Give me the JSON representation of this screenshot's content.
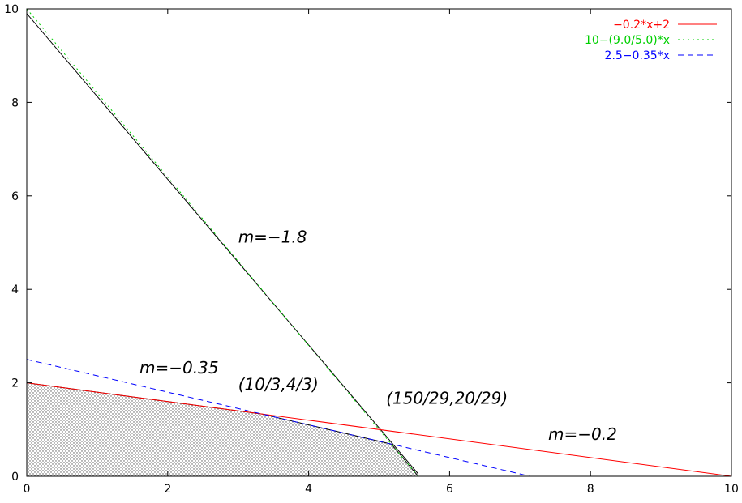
{
  "chart_data": {
    "type": "line",
    "title": "",
    "xlabel": "",
    "ylabel": "",
    "xlim": [
      0,
      10
    ],
    "ylim": [
      0,
      10
    ],
    "xticks": [
      "0",
      "2",
      "4",
      "6",
      "8",
      "10"
    ],
    "yticks": [
      "0",
      "2",
      "4",
      "6",
      "8",
      "10"
    ],
    "grid": false,
    "legend_position": "top-right",
    "series": [
      {
        "name": "-0.2*x+2",
        "color": "#ff0000",
        "dash": "solid",
        "x": [
          0,
          10
        ],
        "y": [
          2,
          0
        ]
      },
      {
        "name": "10-(9.0/5.0)*x",
        "color": "#00d000",
        "dash": "dotted",
        "x": [
          0,
          5.5556
        ],
        "y": [
          10,
          0
        ]
      },
      {
        "name": "2.5-0.35*x",
        "color": "#0000ff",
        "dash": "dashed",
        "x": [
          0,
          7.1429
        ],
        "y": [
          2.5,
          0
        ]
      }
    ],
    "feasible_region": {
      "fill": "hatched-gray",
      "border_color": "#000000",
      "vertices": [
        [
          0,
          0
        ],
        [
          0,
          2
        ],
        [
          3.3333,
          1.3333
        ],
        [
          5.1724,
          0.6897
        ],
        [
          5.5556,
          0
        ],
        [
          0,
          0
        ]
      ]
    },
    "extra_line": {
      "color": "#000000",
      "x": [
        0,
        5.5556
      ],
      "y": [
        9.9,
        0.05
      ]
    },
    "annotations": [
      {
        "text": "m=-1.8",
        "x": 3.0,
        "y": 5.0
      },
      {
        "text": "m=-0.35",
        "x": 1.6,
        "y": 2.2
      },
      {
        "text": "(10/3,4/3)",
        "x": 3.0,
        "y": 1.85
      },
      {
        "text": "(150/29,20/29)",
        "x": 5.1,
        "y": 1.55
      },
      {
        "text": "m=-0.2",
        "x": 7.4,
        "y": 0.78
      }
    ]
  }
}
